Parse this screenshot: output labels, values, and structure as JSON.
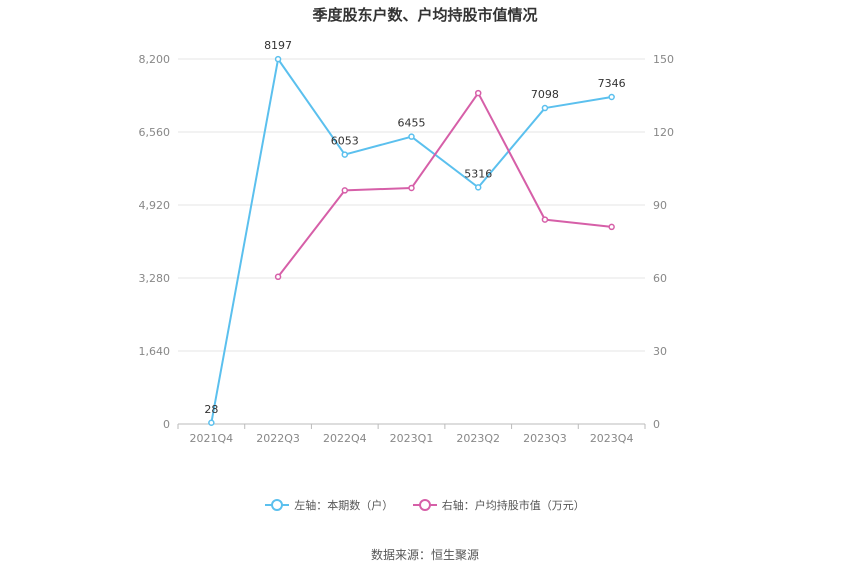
{
  "title": "季度股东户数、户均持股市值情况",
  "source": "数据来源：恒生聚源",
  "colors": {
    "left_series": "#5bc0ee",
    "right_series": "#d65fa8",
    "grid": "#e6e6e6",
    "axis": "#bbbbbb"
  },
  "chart_data": {
    "type": "line",
    "categories": [
      "2021Q4",
      "2022Q3",
      "2022Q4",
      "2023Q1",
      "2023Q2",
      "2023Q3",
      "2023Q4"
    ],
    "y_left": {
      "ylim": [
        0,
        8200
      ],
      "ticks": [
        "0",
        "1,640",
        "3,280",
        "4,920",
        "6,560",
        "8,200"
      ]
    },
    "y_right": {
      "ylim": [
        0,
        150
      ],
      "ticks": [
        "0",
        "30",
        "60",
        "90",
        "120",
        "150"
      ]
    },
    "series": [
      {
        "name": "左轴：本期数（户）",
        "axis": "left",
        "color": "#5bc0ee",
        "values": [
          28,
          8197,
          6053,
          6455,
          5316,
          7098,
          7346
        ],
        "labels": [
          "28",
          "8197",
          "6053",
          "6455",
          "5316",
          "7098",
          "7346"
        ]
      },
      {
        "name": "右轴：户均持股市值（万元）",
        "axis": "right",
        "color": "#d65fa8",
        "values": [
          null,
          60.5,
          96,
          97,
          136,
          84,
          81
        ]
      }
    ],
    "legend_position": "bottom",
    "grid": true
  }
}
